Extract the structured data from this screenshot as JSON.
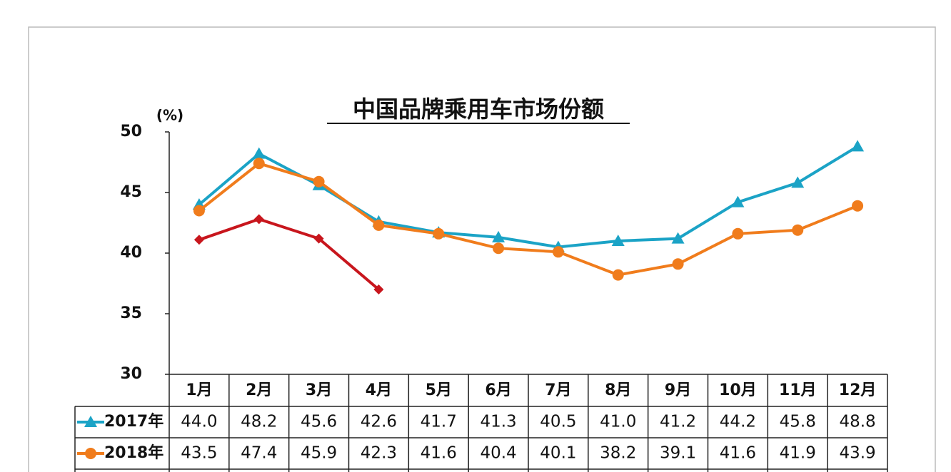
{
  "chart_data": {
    "type": "line",
    "title": "中国品牌乘用车市场份额",
    "y_label": "(%)",
    "categories": [
      "1月",
      "2月",
      "3月",
      "4月",
      "5月",
      "6月",
      "7月",
      "8月",
      "9月",
      "10月",
      "11月",
      "12月"
    ],
    "series": [
      {
        "name": "2017年",
        "color": "#1ba3c6",
        "marker": "triangle",
        "values": [
          44.0,
          48.2,
          45.6,
          42.6,
          41.7,
          41.3,
          40.5,
          41.0,
          41.2,
          44.2,
          45.8,
          48.8
        ],
        "value_labels": [
          "44.0",
          "48.2",
          "45.6",
          "42.6",
          "41.7",
          "41.3",
          "40.5",
          "41.0",
          "41.2",
          "44.2",
          "45.8",
          "48.8"
        ]
      },
      {
        "name": "2018年",
        "color": "#f07c1c",
        "marker": "circle",
        "values": [
          43.5,
          47.4,
          45.9,
          42.3,
          41.6,
          40.4,
          40.1,
          38.2,
          39.1,
          41.6,
          41.9,
          43.9
        ],
        "value_labels": [
          "43.5",
          "47.4",
          "45.9",
          "42.3",
          "41.6",
          "40.4",
          "40.1",
          "38.2",
          "39.1",
          "41.6",
          "41.9",
          "43.9"
        ]
      },
      {
        "color": "#c8161d",
        "marker": "diamond",
        "values": [
          41.1,
          42.8,
          41.2,
          37.0,
          null,
          null,
          null,
          null,
          null,
          null,
          null,
          null
        ]
      }
    ],
    "ylim": [
      30,
      50
    ],
    "yticks": [
      30,
      35,
      40,
      45,
      50
    ],
    "grid": false
  }
}
